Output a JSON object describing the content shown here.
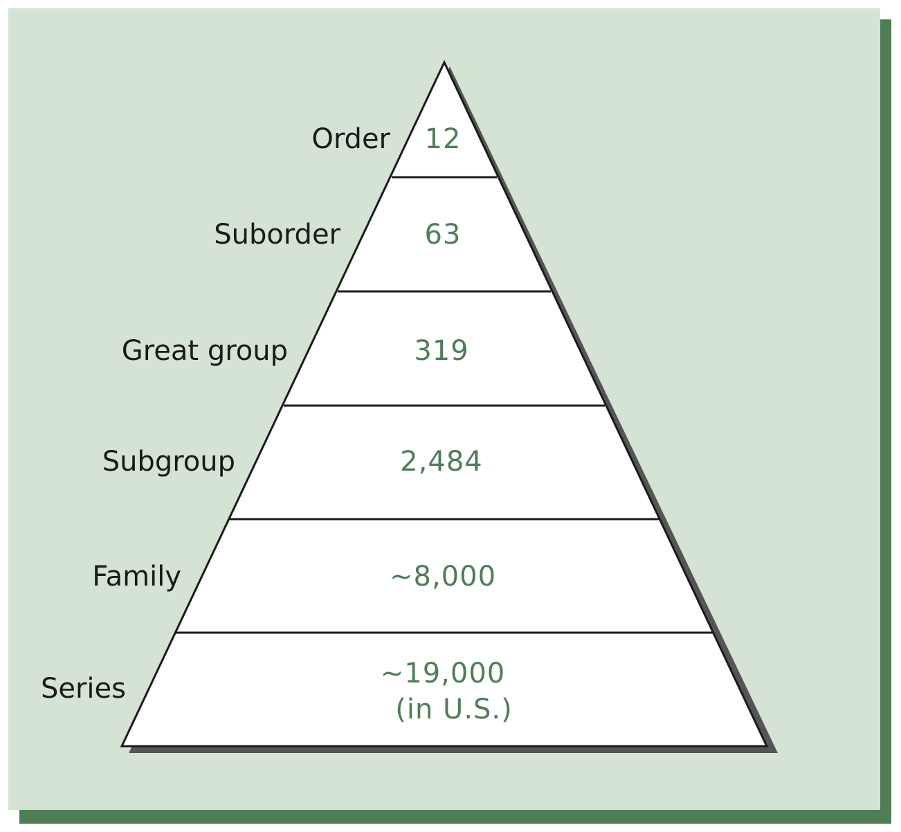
{
  "diagram": {
    "colors": {
      "panel": "#d5e3d5",
      "panel_shadow": "#4e7d56",
      "pyramid_fill": "#ffffff",
      "pyramid_shadow": "#555555",
      "outline": "#1a1a1a",
      "label": "#1a1a1a",
      "count": "#4f7d55"
    },
    "tiers": [
      {
        "label": "Order",
        "count": "12"
      },
      {
        "label": "Suborder",
        "count": "63"
      },
      {
        "label": "Great group",
        "count": "319"
      },
      {
        "label": "Subgroup",
        "count": "2,484"
      },
      {
        "label": "Family",
        "count": "~8,000"
      },
      {
        "label": "Series",
        "count": "~19,000",
        "note": "(in U.S.)"
      }
    ]
  }
}
